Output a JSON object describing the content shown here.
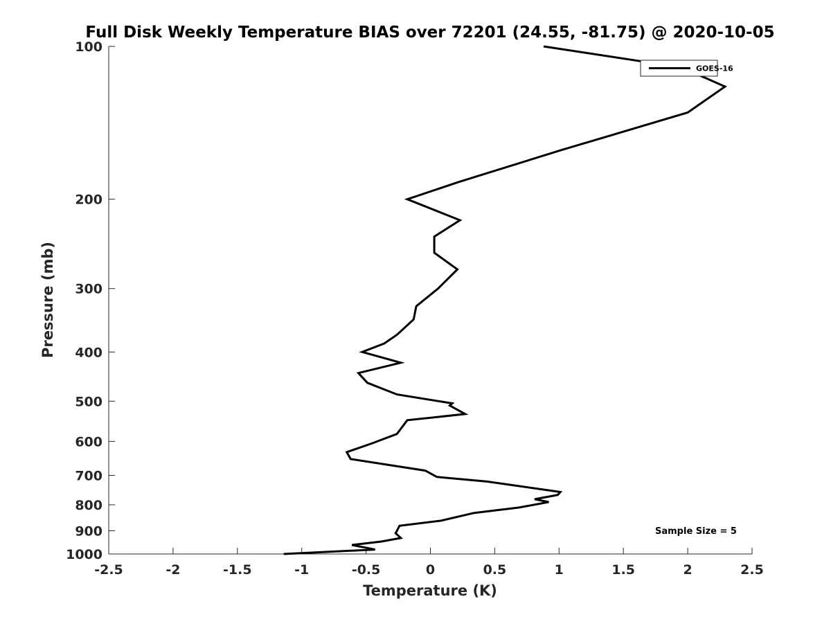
{
  "chart_data": {
    "type": "line",
    "title": "Full Disk Weekly Temperature BIAS over 72201 (24.55, -81.75) @ 2020-10-05",
    "xlabel": "Temperature (K)",
    "ylabel": "Pressure (mb)",
    "xlim": [
      -2.5,
      2.5
    ],
    "ylim": [
      100,
      1000
    ],
    "y_scale": "log",
    "y_reversed": true,
    "grid": false,
    "x_ticks": [
      -2.5,
      -2,
      -1.5,
      -1,
      -0.5,
      0,
      0.5,
      1,
      1.5,
      2,
      2.5
    ],
    "x_tick_labels": [
      "-2.5",
      "-2",
      "-1.5",
      "-1",
      "-0.5",
      "0",
      "0.5",
      "1",
      "1.5",
      "2",
      "2.5"
    ],
    "y_ticks": [
      100,
      200,
      300,
      400,
      500,
      600,
      700,
      800,
      900,
      1000
    ],
    "y_tick_labels": [
      "100",
      "200",
      "300",
      "400",
      "500",
      "600",
      "700",
      "800",
      "900",
      "1000"
    ],
    "legend": {
      "location": "top-right",
      "entries": [
        "GOES-16"
      ]
    },
    "annotations": [
      "Sample Size = 5"
    ],
    "series": [
      {
        "name": "GOES-16",
        "color": "#000000",
        "x": [
          0.88,
          1.95,
          2.29,
          2.0,
          1.02,
          0.22,
          -0.18,
          0.23,
          0.03,
          0.03,
          0.21,
          0.06,
          -0.11,
          -0.13,
          -0.26,
          -0.36,
          -0.53,
          -0.23,
          -0.56,
          -0.49,
          -0.26,
          0.17,
          0.15,
          0.27,
          -0.18,
          -0.26,
          -0.45,
          -0.65,
          -0.62,
          -0.04,
          0.05,
          0.44,
          1.01,
          0.99,
          0.81,
          0.92,
          0.69,
          0.34,
          0.08,
          -0.24,
          -0.27,
          -0.23,
          -0.38,
          -0.61,
          -0.43,
          -1.14
        ],
        "y": [
          100,
          110,
          120,
          135,
          160,
          185,
          200,
          220,
          237,
          255,
          275,
          300,
          325,
          345,
          370,
          385,
          400,
          420,
          440,
          460,
          485,
          505,
          510,
          530,
          545,
          580,
          605,
          630,
          650,
          685,
          705,
          720,
          755,
          765,
          780,
          790,
          810,
          830,
          860,
          880,
          910,
          930,
          945,
          960,
          980,
          1000
        ]
      }
    ]
  }
}
